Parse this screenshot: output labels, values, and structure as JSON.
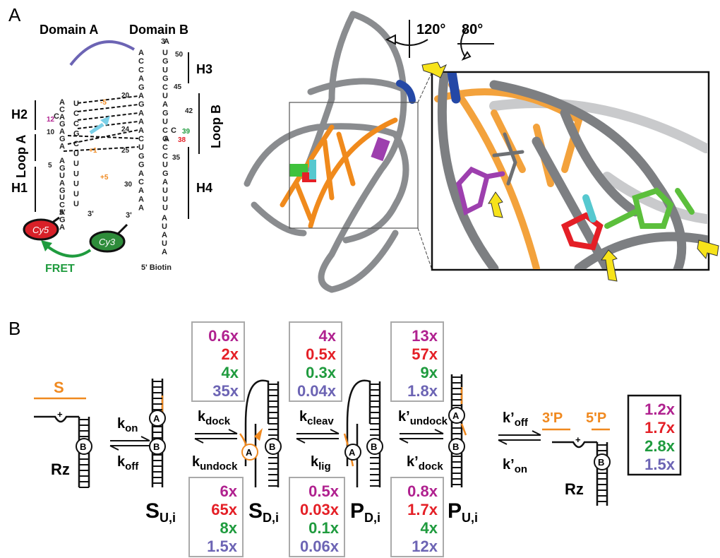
{
  "panel_labels": {
    "a": "A",
    "b": "B"
  },
  "secondary": {
    "domain_a": "Domain A",
    "domain_b": "Domain B",
    "loop_a": "Loop A",
    "loop_b": "Loop B",
    "helices": {
      "h1": "H1",
      "h2": "H2",
      "h3": "H3",
      "h4": "H4"
    },
    "ends": {
      "a5": "5'",
      "a3": "3'",
      "b3top": "3'",
      "b3": "3'"
    },
    "biotin": "5' Biotin",
    "fret": "FRET",
    "cy5": "Cy5",
    "cy3": "Cy3",
    "numbers": {
      "n50": "50",
      "n45": "45",
      "n42": "42",
      "n39": "39",
      "n38": "38",
      "n35": "35",
      "n30": "30",
      "n25": "25",
      "n24": "24",
      "n20": "20",
      "n12": "12",
      "n10": "10",
      "n5": "5",
      "m5": "-5",
      "p5": "+5",
      "p1": "+1"
    }
  },
  "rotation": {
    "angle1": "120°",
    "angle2": "80°"
  },
  "colors": {
    "purple": "#b0218f",
    "red": "#e41f26",
    "green": "#1f9b3e",
    "blue": "#6c64b4",
    "orange": "#f0891f",
    "gray": "#7d7f82"
  },
  "scheme": {
    "substrate": "S",
    "rz": "Rz",
    "domain_a_circle": "A",
    "domain_b_circle": "B",
    "rates": {
      "kon": {
        "k": "k",
        "sub": "on"
      },
      "koff": {
        "k": "k",
        "sub": "off"
      },
      "kdock": {
        "k": "k",
        "sub": "dock"
      },
      "kundock": {
        "k": "k",
        "sub": "undock"
      },
      "kcleav": {
        "k": "k",
        "sub": "cleav"
      },
      "klig": {
        "k": "k",
        "sub": "lig"
      },
      "kpundock": {
        "k": "k’",
        "sub": "undock"
      },
      "kpdock": {
        "k": "k’",
        "sub": "dock"
      },
      "kpoff": {
        "k": "k’",
        "sub": "off"
      },
      "kpon": {
        "k": "k’",
        "sub": "on"
      }
    },
    "states": {
      "sui": {
        "main": "S",
        "sub": "U,i"
      },
      "sdi": {
        "main": "S",
        "sub": "D,i"
      },
      "pdi": {
        "main": "P",
        "sub": "D,i"
      },
      "pui": {
        "main": "P",
        "sub": "U,i"
      }
    },
    "product_3p": "3'P",
    "product_5p": "5'P",
    "boxes": {
      "dock_top": [
        "0.6x",
        "2x",
        "4x",
        "35x"
      ],
      "cleav_top": [
        "4x",
        "0.5x",
        "0.3x",
        "0.04x"
      ],
      "undock_top": [
        "13x",
        "57x",
        "9x",
        "1.8x"
      ],
      "undock_bottom": [
        "6x",
        "65x",
        "8x",
        "1.5x"
      ],
      "lig_bottom": [
        "0.5x",
        "0.03x",
        "0.1x",
        "0.06x"
      ],
      "dock_bottom": [
        "0.8x",
        "1.7x",
        "4x",
        "12x"
      ],
      "release": [
        "1.2x",
        "1.7x",
        "2.8x",
        "1.5x"
      ]
    }
  }
}
